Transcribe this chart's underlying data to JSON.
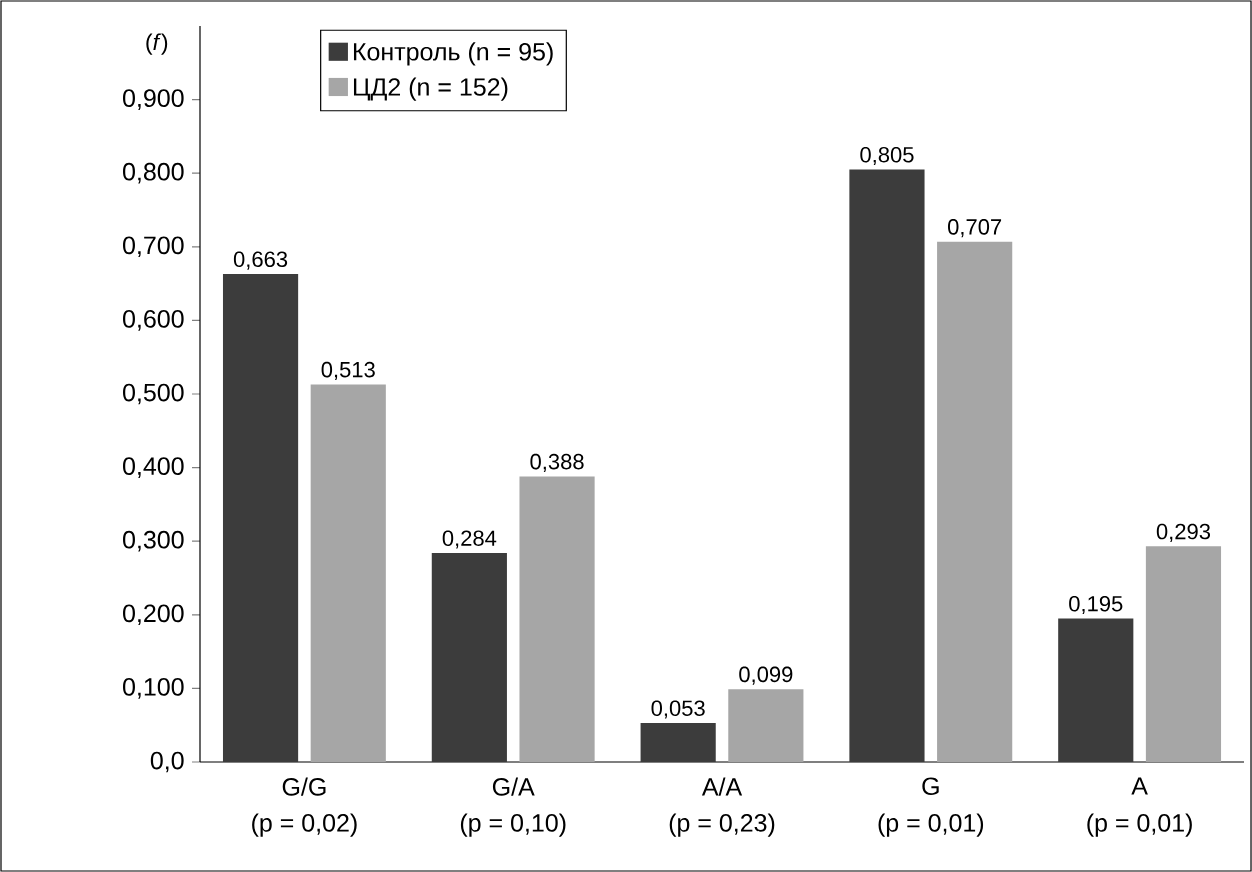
{
  "chart_data": {
    "type": "bar",
    "ylabel": "(*f*)",
    "categories": [
      "G/G",
      "G/A",
      "A/A",
      "G",
      "A"
    ],
    "series": [
      {
        "name": "Контроль (n = 95)",
        "color": "#3c3c3c",
        "values": [
          0.663,
          0.284,
          0.053,
          0.805,
          0.195
        ],
        "value_labels": [
          "0,663",
          "0,284",
          "0,053",
          "0,805",
          "0,195"
        ]
      },
      {
        "name": "ЦД2 (n = 152)",
        "color": "#a6a6a6",
        "values": [
          0.513,
          0.388,
          0.099,
          0.707,
          0.293
        ],
        "value_labels": [
          "0,513",
          "0,388",
          "0,099",
          "0,707",
          "0,293"
        ]
      }
    ],
    "ylim": [
      0,
      1.0
    ],
    "yticks": [
      {
        "value": 0,
        "label": "0,0"
      },
      {
        "value": 0.1,
        "label": "0,100"
      },
      {
        "value": 0.2,
        "label": "0,200"
      },
      {
        "value": 0.3,
        "label": "0,300"
      },
      {
        "value": 0.4,
        "label": "0,400"
      },
      {
        "value": 0.5,
        "label": "0,500"
      },
      {
        "value": 0.6,
        "label": "0,600"
      },
      {
        "value": 0.7,
        "label": "0,700"
      },
      {
        "value": 0.8,
        "label": "0,800"
      },
      {
        "value": 0.9,
        "label": "0,900"
      }
    ],
    "legend": "top left",
    "annotations": [
      "(p = 0,02)",
      "(p = 0,10)",
      "(p = 0,23)",
      "(p = 0,01)",
      "(p = 0,01)"
    ]
  }
}
